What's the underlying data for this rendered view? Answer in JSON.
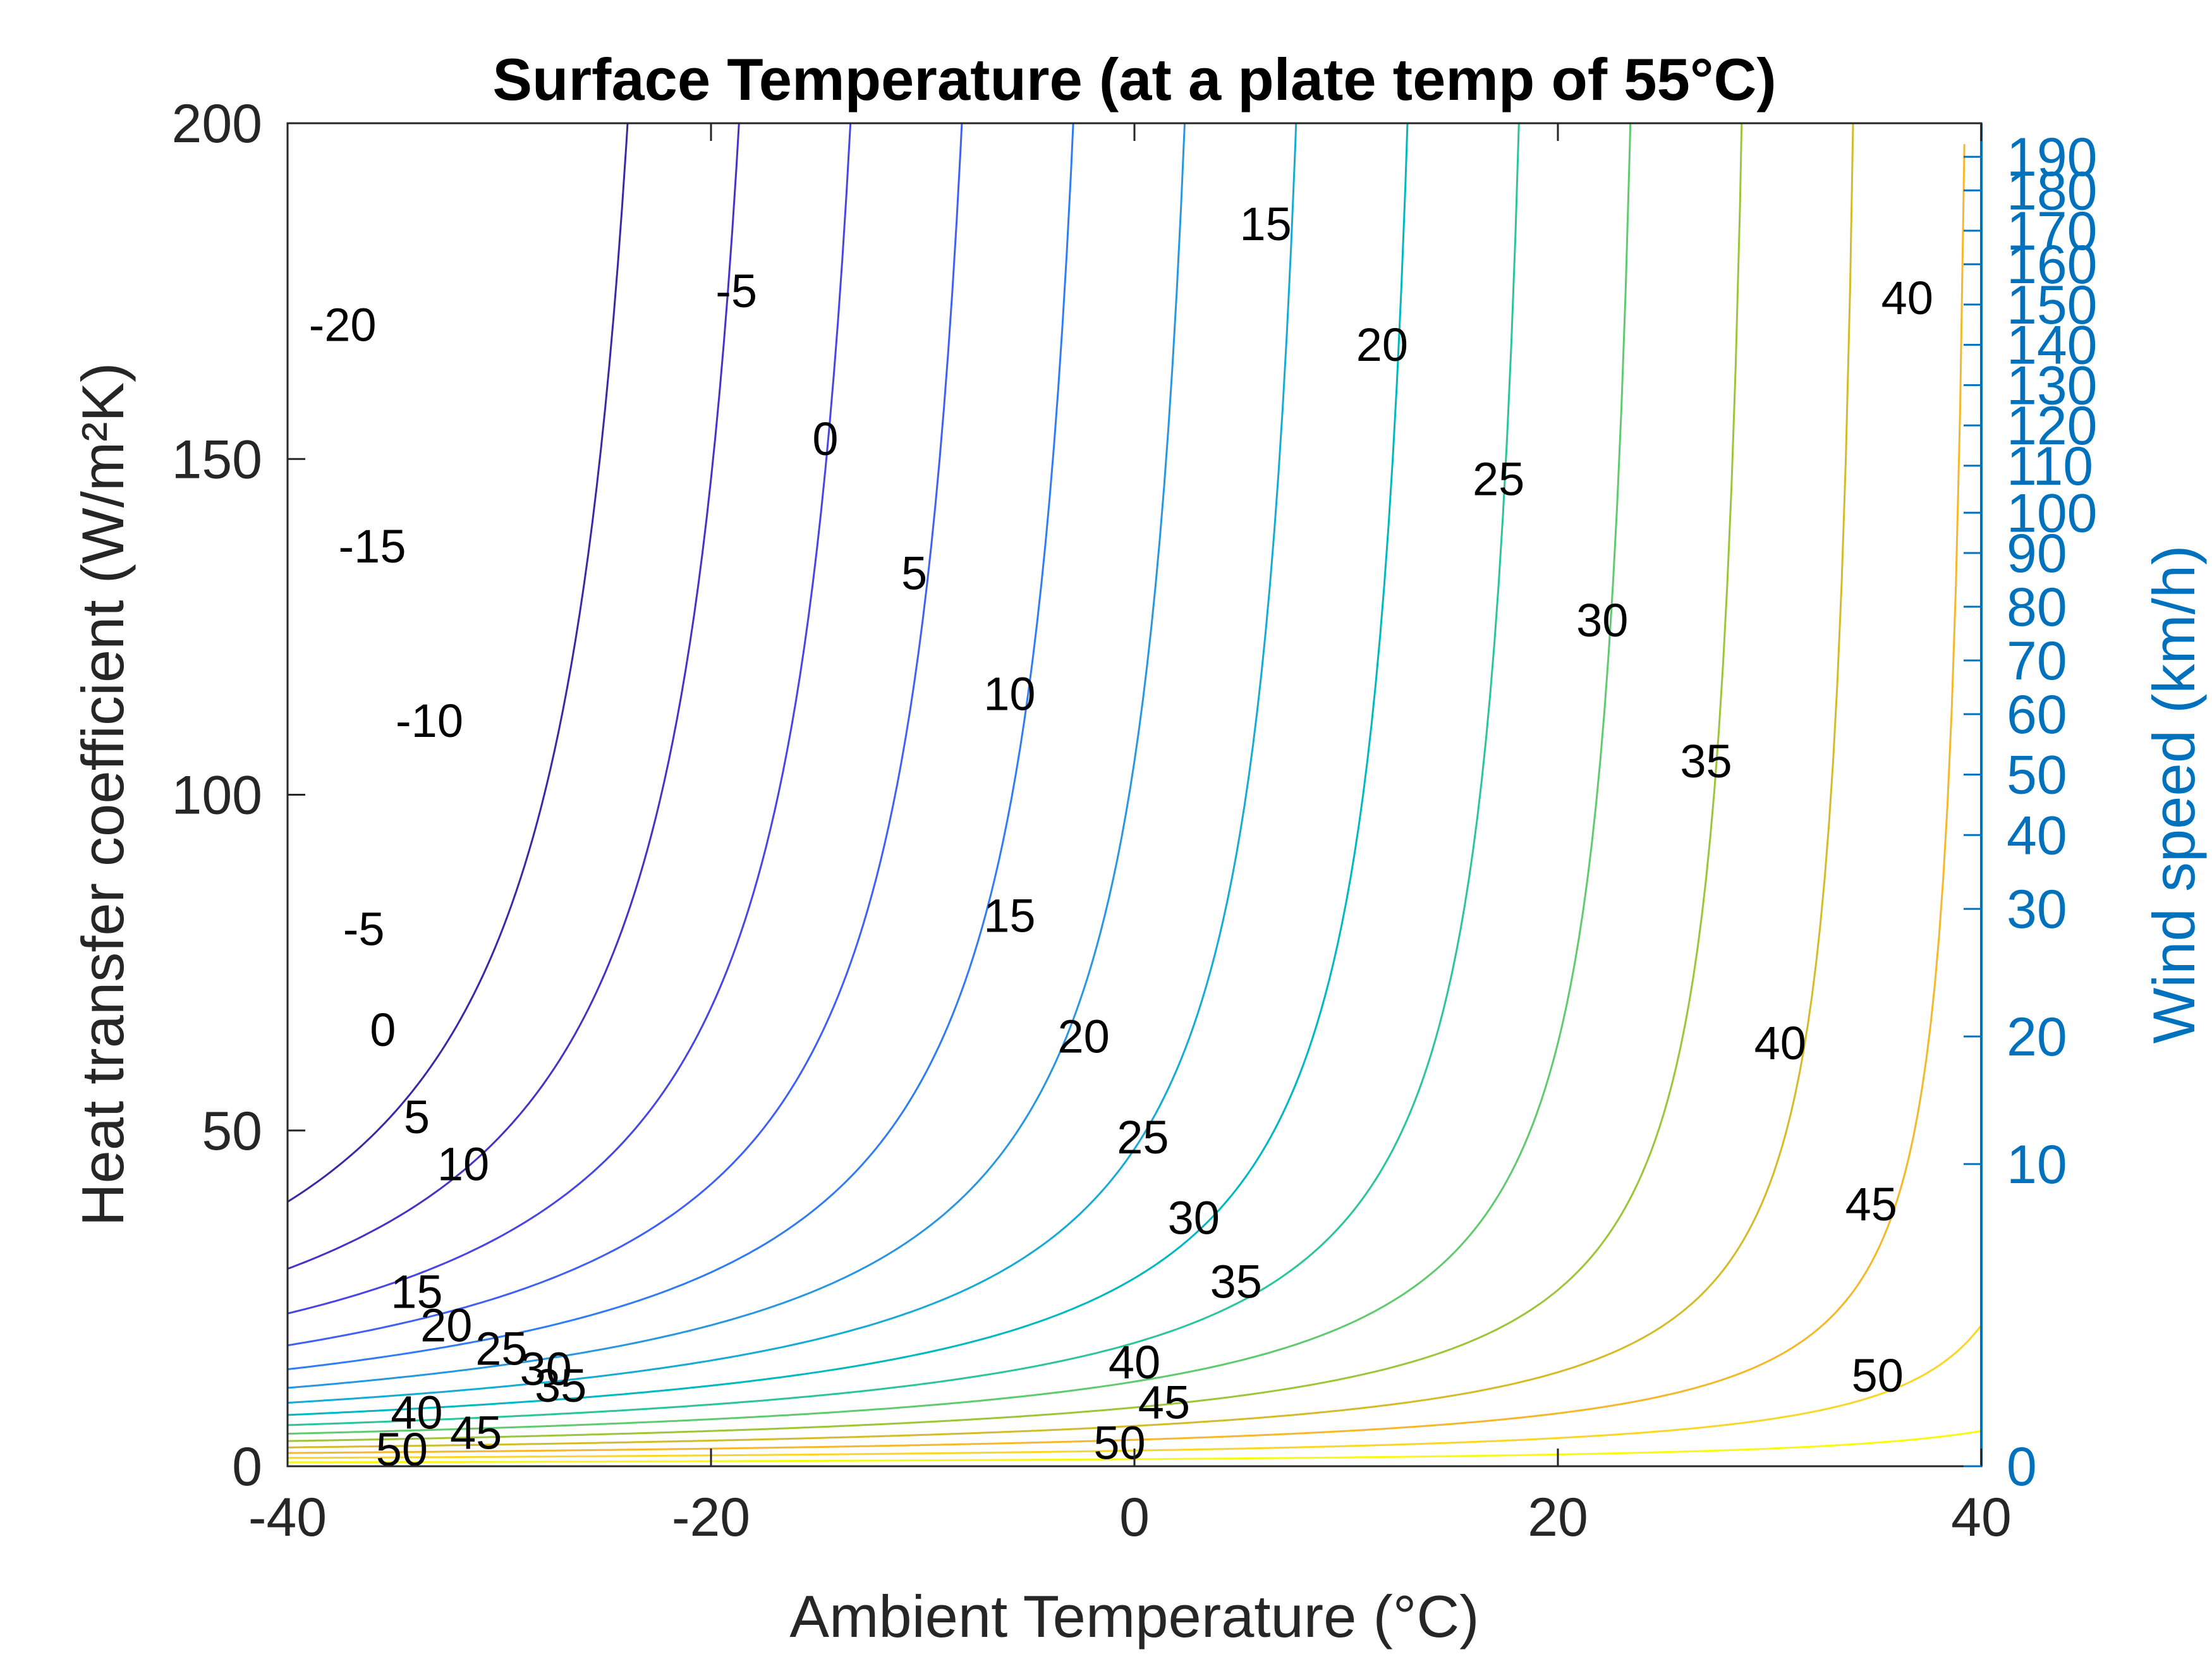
{
  "chart_data": {
    "type": "contour",
    "title": "Surface Temperature (at a plate temp of 55°C)",
    "xlabel": "Ambient Temperature (°C)",
    "ylabel": "Heat transfer coefficient (W/m²K)",
    "y2label": "Wind speed (km/h)",
    "xlim": [
      -40,
      40
    ],
    "ylim": [
      0,
      200
    ],
    "x_ticks": [
      -40,
      -20,
      0,
      20,
      40
    ],
    "y_ticks": [
      0,
      50,
      100,
      150,
      200
    ],
    "y2_ticks": [
      {
        "label": "0",
        "h": 0
      },
      {
        "label": "10",
        "h": 45
      },
      {
        "label": "20",
        "h": 64
      },
      {
        "label": "30",
        "h": 83
      },
      {
        "label": "40",
        "h": 94
      },
      {
        "label": "50",
        "h": 103
      },
      {
        "label": "60",
        "h": 112
      },
      {
        "label": "70",
        "h": 120
      },
      {
        "label": "80",
        "h": 128
      },
      {
        "label": "90",
        "h": 136
      },
      {
        "label": "100",
        "h": 142
      },
      {
        "label": "110",
        "h": 149
      },
      {
        "label": "120",
        "h": 155
      },
      {
        "label": "130",
        "h": 161
      },
      {
        "label": "140",
        "h": 167
      },
      {
        "label": "150",
        "h": 173
      },
      {
        "label": "160",
        "h": 179
      },
      {
        "label": "170",
        "h": 184
      },
      {
        "label": "180",
        "h": 190
      },
      {
        "label": "190",
        "h": 195
      }
    ],
    "plate_temperature": 55,
    "levels": [
      -20,
      -15,
      -10,
      -5,
      0,
      5,
      10,
      15,
      20,
      25,
      30,
      35,
      40,
      45,
      50
    ],
    "level_colors": [
      "#3e26a8",
      "#4433c8",
      "#4745e6",
      "#4060f5",
      "#2f7cf4",
      "#2896e0",
      "#15abd5",
      "#00b9c0",
      "#2cc49b",
      "#5fca6e",
      "#9dc53a",
      "#d4bb29",
      "#f5b72b",
      "#fad62a",
      "#f9f914"
    ],
    "contour_labels": [
      {
        "level": -20,
        "x": -37.4,
        "y": 170
      },
      {
        "level": -15,
        "x": -36.0,
        "y": 137
      },
      {
        "level": -10,
        "x": -33.3,
        "y": 111
      },
      {
        "level": -5,
        "x": -36.4,
        "y": 80
      },
      {
        "level": 0,
        "x": -35.5,
        "y": 65
      },
      {
        "level": 5,
        "x": -33.9,
        "y": 52
      },
      {
        "level": 10,
        "x": -31.7,
        "y": 45
      },
      {
        "level": 15,
        "x": -33.9,
        "y": 26
      },
      {
        "level": 20,
        "x": -32.5,
        "y": 21
      },
      {
        "level": 25,
        "x": -29.9,
        "y": 17.5
      },
      {
        "level": 30,
        "x": -27.8,
        "y": 14.5
      },
      {
        "level": 35,
        "x": -27.1,
        "y": 12
      },
      {
        "level": 40,
        "x": -33.9,
        "y": 8
      },
      {
        "level": 45,
        "x": -31.1,
        "y": 5
      },
      {
        "level": 50,
        "x": -34.6,
        "y": 2.5
      },
      {
        "level": -5,
        "x": -18.8,
        "y": 175
      },
      {
        "level": 0,
        "x": -14.6,
        "y": 153
      },
      {
        "level": 5,
        "x": -10.4,
        "y": 133
      },
      {
        "level": 10,
        "x": -5.9,
        "y": 115
      },
      {
        "level": 15,
        "x": -5.9,
        "y": 82
      },
      {
        "level": 20,
        "x": -2.4,
        "y": 64
      },
      {
        "level": 25,
        "x": 0.4,
        "y": 49
      },
      {
        "level": 30,
        "x": 2.8,
        "y": 37
      },
      {
        "level": 35,
        "x": 4.8,
        "y": 27.5
      },
      {
        "level": 40,
        "x": 0.0,
        "y": 15.5
      },
      {
        "level": 45,
        "x": 1.4,
        "y": 9.5
      },
      {
        "level": 50,
        "x": -0.7,
        "y": 3.5
      },
      {
        "level": 15,
        "x": 6.2,
        "y": 185
      },
      {
        "level": 20,
        "x": 11.7,
        "y": 167
      },
      {
        "level": 25,
        "x": 17.2,
        "y": 147
      },
      {
        "level": 30,
        "x": 22.1,
        "y": 126
      },
      {
        "level": 35,
        "x": 27.0,
        "y": 105
      },
      {
        "level": 40,
        "x": 30.5,
        "y": 63
      },
      {
        "level": 45,
        "x": 34.8,
        "y": 39
      },
      {
        "level": 50,
        "x": 35.1,
        "y": 13.5
      },
      {
        "level": 40,
        "x": 36.5,
        "y": 174
      }
    ]
  }
}
